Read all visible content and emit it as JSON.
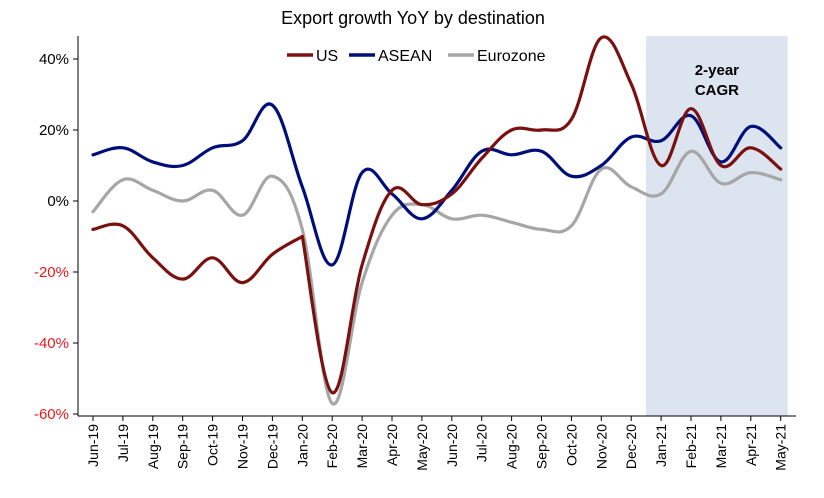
{
  "chart_data": {
    "type": "line",
    "title": "Export growth YoY by destination",
    "categories": [
      "Jun-19",
      "Jul-19",
      "Aug-19",
      "Sep-19",
      "Oct-19",
      "Nov-19",
      "Dec-19",
      "Jan-20",
      "Feb-20",
      "Mar-20",
      "Apr-20",
      "May-20",
      "Jun-20",
      "Jul-20",
      "Aug-20",
      "Sep-20",
      "Oct-20",
      "Nov-20",
      "Dec-20",
      "Jan-21",
      "Feb-21",
      "Mar-21",
      "Apr-21",
      "May-21"
    ],
    "ylim": [
      -60,
      47
    ],
    "yticks": [
      -60,
      -40,
      -20,
      0,
      20,
      40
    ],
    "ytick_labels": [
      "-60%",
      "-40%",
      "-20%",
      "0%",
      "20%",
      "40%"
    ],
    "negative_tick_color": "#e8191e",
    "positive_tick_color": "#000000",
    "grid": false,
    "legend": "top",
    "series": [
      {
        "name": "US",
        "color": "#7a1010",
        "values": [
          -8,
          -7,
          -16,
          -22,
          -16,
          -23,
          -15,
          -10,
          -54,
          -18,
          3,
          -1,
          2,
          12,
          20,
          20,
          23,
          46,
          33,
          10,
          26,
          10,
          15,
          9
        ],
        "gap_after_index": 7
      },
      {
        "name": "ASEAN",
        "color": "#000e7a",
        "values": [
          13,
          15,
          11,
          10,
          15,
          17,
          27,
          4,
          -18,
          8,
          2,
          -5,
          3,
          14,
          13,
          14,
          7,
          10,
          18,
          17,
          24,
          11,
          21,
          15
        ]
      },
      {
        "name": "Eurozone",
        "color": "#a6a6a6",
        "values": [
          -3,
          6,
          3,
          0,
          3,
          -4,
          7,
          -8,
          -57,
          -23,
          -4,
          -1,
          -5,
          -4,
          -6,
          -8,
          -7,
          9,
          4,
          2,
          14,
          5,
          8,
          6
        ]
      }
    ],
    "annotation": {
      "lines": [
        "2-year",
        "CAGR"
      ],
      "start_category": "Jan-21",
      "end_category": "May-21",
      "fill": "#dce4ef"
    }
  }
}
